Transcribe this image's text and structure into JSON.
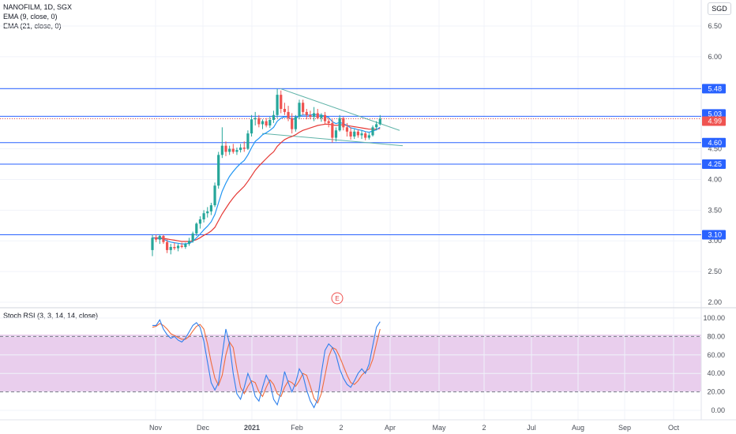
{
  "header": {
    "symbol_line": "NANOFILM, 1D, SGX",
    "ema9_label": "EMA (9, close, 0)",
    "ema21_label": "EMA (21, close, 0)",
    "currency": "SGD"
  },
  "price_axis": {
    "ticks": [
      "6.50",
      "6.00",
      "5.50",
      "5.00",
      "4.50",
      "4.00",
      "3.50",
      "3.00",
      "2.50",
      "2.00"
    ]
  },
  "price_tags": [
    {
      "label": "5.48",
      "color": "#2962ff"
    },
    {
      "label": "5.03",
      "color": "#2962ff"
    },
    {
      "label": "4.99",
      "color": "#ef5350"
    },
    {
      "label": "4.60",
      "color": "#2962ff"
    },
    {
      "label": "4.25",
      "color": "#2962ff"
    },
    {
      "label": "3.10",
      "color": "#2962ff"
    }
  ],
  "earnings_marker": "E",
  "rsi": {
    "label": "Stoch RSI (3, 3, 14, 14, close)",
    "ticks": [
      "100.00",
      "80.00",
      "60.00",
      "40.00",
      "20.00",
      "0.00"
    ],
    "band_color": "#e1bee7"
  },
  "time_axis": {
    "labels": [
      "Nov",
      "Dec",
      "2021",
      "Feb",
      "2",
      "Apr",
      "May",
      "2",
      "Jul",
      "Aug",
      "Sep",
      "Oct"
    ]
  },
  "colors": {
    "up": "#26a69a",
    "down": "#ef5350",
    "ema9": "#2196f3",
    "ema21": "#e53935",
    "hline": "#2962ff",
    "trend": "#5fb3a8"
  },
  "chart_data": {
    "type": "candlestick",
    "y_range": [
      1.95,
      6.75
    ],
    "candles": [
      {
        "o": 2.85,
        "h": 3.1,
        "l": 2.75,
        "c": 3.05
      },
      {
        "o": 3.05,
        "h": 3.1,
        "l": 2.98,
        "c": 3.02
      },
      {
        "o": 3.02,
        "h": 3.1,
        "l": 2.95,
        "c": 3.08
      },
      {
        "o": 3.08,
        "h": 3.1,
        "l": 2.95,
        "c": 2.98
      },
      {
        "o": 2.98,
        "h": 3.02,
        "l": 2.8,
        "c": 2.85
      },
      {
        "o": 2.85,
        "h": 2.95,
        "l": 2.78,
        "c": 2.9
      },
      {
        "o": 2.9,
        "h": 2.97,
        "l": 2.85,
        "c": 2.88
      },
      {
        "o": 2.88,
        "h": 2.95,
        "l": 2.83,
        "c": 2.92
      },
      {
        "o": 2.92,
        "h": 2.97,
        "l": 2.88,
        "c": 2.9
      },
      {
        "o": 2.9,
        "h": 2.97,
        "l": 2.87,
        "c": 2.95
      },
      {
        "o": 2.95,
        "h": 3.05,
        "l": 2.92,
        "c": 3.0
      },
      {
        "o": 3.0,
        "h": 3.15,
        "l": 2.97,
        "c": 3.12
      },
      {
        "o": 3.12,
        "h": 3.3,
        "l": 3.08,
        "c": 3.28
      },
      {
        "o": 3.28,
        "h": 3.4,
        "l": 3.2,
        "c": 3.35
      },
      {
        "o": 3.35,
        "h": 3.5,
        "l": 3.3,
        "c": 3.45
      },
      {
        "o": 3.45,
        "h": 3.55,
        "l": 3.38,
        "c": 3.48
      },
      {
        "o": 3.48,
        "h": 3.62,
        "l": 3.42,
        "c": 3.58
      },
      {
        "o": 3.58,
        "h": 3.95,
        "l": 3.55,
        "c": 3.9
      },
      {
        "o": 3.9,
        "h": 4.45,
        "l": 3.85,
        "c": 4.4
      },
      {
        "o": 4.4,
        "h": 4.85,
        "l": 4.35,
        "c": 4.55
      },
      {
        "o": 4.55,
        "h": 4.62,
        "l": 4.38,
        "c": 4.45
      },
      {
        "o": 4.45,
        "h": 4.55,
        "l": 4.4,
        "c": 4.5
      },
      {
        "o": 4.5,
        "h": 4.58,
        "l": 4.42,
        "c": 4.45
      },
      {
        "o": 4.45,
        "h": 4.52,
        "l": 4.4,
        "c": 4.48
      },
      {
        "o": 4.48,
        "h": 4.58,
        "l": 4.44,
        "c": 4.52
      },
      {
        "o": 4.52,
        "h": 4.62,
        "l": 4.45,
        "c": 4.5
      },
      {
        "o": 4.5,
        "h": 4.8,
        "l": 4.48,
        "c": 4.75
      },
      {
        "o": 4.75,
        "h": 5.05,
        "l": 4.7,
        "c": 4.98
      },
      {
        "o": 4.98,
        "h": 5.1,
        "l": 4.88,
        "c": 5.0
      },
      {
        "o": 5.0,
        "h": 5.05,
        "l": 4.85,
        "c": 4.9
      },
      {
        "o": 4.9,
        "h": 4.98,
        "l": 4.82,
        "c": 4.95
      },
      {
        "o": 4.95,
        "h": 5.0,
        "l": 4.85,
        "c": 4.88
      },
      {
        "o": 4.88,
        "h": 5.02,
        "l": 4.84,
        "c": 4.97
      },
      {
        "o": 4.97,
        "h": 5.12,
        "l": 4.92,
        "c": 5.05
      },
      {
        "o": 5.05,
        "h": 5.48,
        "l": 5.0,
        "c": 5.38
      },
      {
        "o": 5.38,
        "h": 5.45,
        "l": 5.08,
        "c": 5.15
      },
      {
        "o": 5.15,
        "h": 5.25,
        "l": 5.05,
        "c": 5.1
      },
      {
        "o": 5.1,
        "h": 5.2,
        "l": 4.95,
        "c": 5.0
      },
      {
        "o": 5.0,
        "h": 5.08,
        "l": 4.75,
        "c": 4.82
      },
      {
        "o": 4.82,
        "h": 5.05,
        "l": 4.78,
        "c": 5.02
      },
      {
        "o": 5.02,
        "h": 5.3,
        "l": 4.98,
        "c": 5.25
      },
      {
        "o": 5.25,
        "h": 5.3,
        "l": 5.05,
        "c": 5.1
      },
      {
        "o": 5.1,
        "h": 5.15,
        "l": 4.98,
        "c": 5.05
      },
      {
        "o": 5.05,
        "h": 5.12,
        "l": 4.98,
        "c": 5.02
      },
      {
        "o": 5.02,
        "h": 5.18,
        "l": 4.95,
        "c": 5.08
      },
      {
        "o": 5.08,
        "h": 5.15,
        "l": 4.98,
        "c": 5.0
      },
      {
        "o": 5.0,
        "h": 5.08,
        "l": 4.94,
        "c": 5.05
      },
      {
        "o": 5.05,
        "h": 5.1,
        "l": 4.9,
        "c": 4.95
      },
      {
        "o": 4.95,
        "h": 5.0,
        "l": 4.85,
        "c": 4.92
      },
      {
        "o": 4.92,
        "h": 4.98,
        "l": 4.6,
        "c": 4.68
      },
      {
        "o": 4.68,
        "h": 4.85,
        "l": 4.62,
        "c": 4.8
      },
      {
        "o": 4.8,
        "h": 5.05,
        "l": 4.78,
        "c": 5.0
      },
      {
        "o": 5.0,
        "h": 5.02,
        "l": 4.8,
        "c": 4.85
      },
      {
        "o": 4.85,
        "h": 4.92,
        "l": 4.7,
        "c": 4.78
      },
      {
        "o": 4.78,
        "h": 4.85,
        "l": 4.65,
        "c": 4.7
      },
      {
        "o": 4.7,
        "h": 4.82,
        "l": 4.66,
        "c": 4.78
      },
      {
        "o": 4.78,
        "h": 4.82,
        "l": 4.68,
        "c": 4.72
      },
      {
        "o": 4.72,
        "h": 4.8,
        "l": 4.66,
        "c": 4.75
      },
      {
        "o": 4.75,
        "h": 4.78,
        "l": 4.64,
        "c": 4.68
      },
      {
        "o": 4.68,
        "h": 4.76,
        "l": 4.65,
        "c": 4.72
      },
      {
        "o": 4.72,
        "h": 4.88,
        "l": 4.7,
        "c": 4.85
      },
      {
        "o": 4.85,
        "h": 4.95,
        "l": 4.8,
        "c": 4.9
      },
      {
        "o": 4.9,
        "h": 5.05,
        "l": 4.88,
        "c": 4.99
      }
    ],
    "ema9": [
      3.05,
      3.04,
      3.04,
      3.03,
      3.0,
      2.98,
      2.97,
      2.96,
      2.95,
      2.95,
      2.96,
      2.99,
      3.05,
      3.11,
      3.18,
      3.24,
      3.31,
      3.43,
      3.62,
      3.81,
      3.94,
      4.05,
      4.13,
      4.2,
      4.26,
      4.31,
      4.4,
      4.52,
      4.62,
      4.67,
      4.73,
      4.76,
      4.8,
      4.85,
      4.95,
      5.0,
      5.02,
      5.02,
      4.98,
      4.99,
      5.04,
      5.05,
      5.05,
      5.05,
      5.06,
      5.05,
      5.05,
      5.03,
      5.01,
      4.94,
      4.91,
      4.93,
      4.91,
      4.88,
      4.84,
      4.83,
      4.81,
      4.8,
      4.78,
      4.77,
      4.79,
      4.81,
      4.85
    ],
    "ema21": [
      3.05,
      3.05,
      3.05,
      3.04,
      3.03,
      3.02,
      3.01,
      3.0,
      2.99,
      2.99,
      2.99,
      3.0,
      3.02,
      3.05,
      3.09,
      3.12,
      3.16,
      3.22,
      3.33,
      3.44,
      3.53,
      3.62,
      3.7,
      3.77,
      3.83,
      3.89,
      3.97,
      4.06,
      4.15,
      4.22,
      4.28,
      4.34,
      4.4,
      4.45,
      4.54,
      4.6,
      4.65,
      4.68,
      4.7,
      4.73,
      4.77,
      4.8,
      4.82,
      4.84,
      4.86,
      4.88,
      4.89,
      4.9,
      4.9,
      4.89,
      4.88,
      4.89,
      4.89,
      4.88,
      4.87,
      4.86,
      4.85,
      4.84,
      4.83,
      4.82,
      4.82,
      4.82,
      4.83
    ],
    "hlines": [
      5.48,
      5.03,
      4.6,
      4.25,
      3.1
    ],
    "last_close": 4.99,
    "trendlines": [
      [
        5.48,
        4.8
      ],
      [
        4.75,
        4.55
      ]
    ],
    "stoch_rsi": {
      "y_range": [
        0,
        100
      ],
      "bands": [
        20,
        80
      ],
      "k": [
        92,
        92,
        98,
        88,
        82,
        78,
        80,
        76,
        74,
        78,
        85,
        92,
        95,
        90,
        75,
        52,
        30,
        22,
        30,
        60,
        88,
        72,
        40,
        18,
        12,
        25,
        40,
        30,
        15,
        10,
        25,
        38,
        30,
        12,
        6,
        20,
        42,
        30,
        20,
        30,
        45,
        38,
        22,
        10,
        3,
        12,
        40,
        65,
        72,
        68,
        60,
        45,
        35,
        28,
        25,
        32,
        40,
        45,
        40,
        50,
        70,
        90,
        96
      ],
      "d": [
        90,
        91,
        94,
        92,
        88,
        83,
        81,
        79,
        77,
        77,
        80,
        86,
        91,
        93,
        88,
        72,
        52,
        35,
        27,
        38,
        60,
        74,
        68,
        45,
        25,
        18,
        26,
        32,
        30,
        20,
        15,
        25,
        33,
        28,
        18,
        15,
        25,
        32,
        30,
        26,
        32,
        40,
        38,
        26,
        13,
        8,
        18,
        38,
        58,
        68,
        66,
        58,
        48,
        38,
        30,
        28,
        32,
        38,
        42,
        45,
        55,
        72,
        88
      ]
    }
  }
}
